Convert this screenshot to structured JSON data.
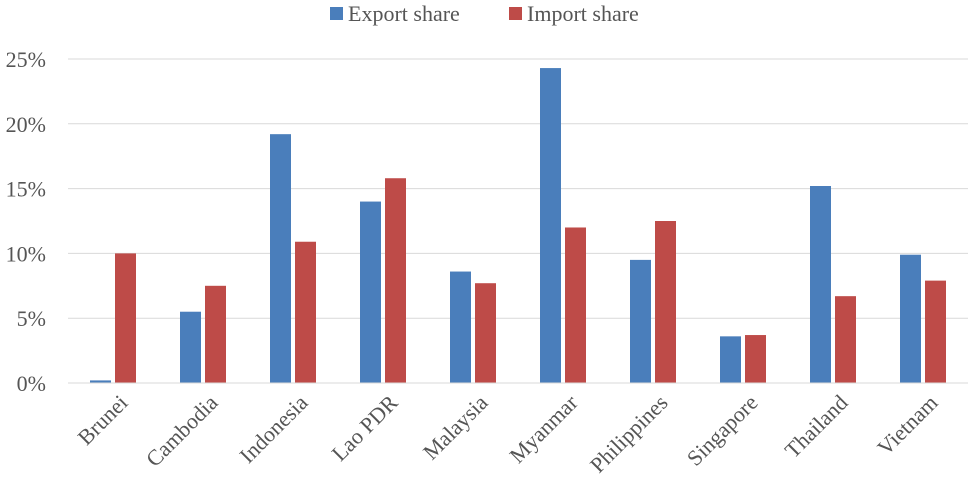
{
  "chart_data": {
    "type": "bar",
    "categories": [
      "Brunei",
      "Cambodia",
      "Indonesia",
      "Lao PDR",
      "Malaysia",
      "Myanmar",
      "Philippines",
      "Singapore",
      "Thailand",
      "Vietnam"
    ],
    "series": [
      {
        "name": "Export share",
        "color": "#4a7ebb",
        "values": [
          0.2,
          5.5,
          19.2,
          14.0,
          8.6,
          24.3,
          9.5,
          3.6,
          15.2,
          9.9
        ]
      },
      {
        "name": "Import share",
        "color": "#be4b48",
        "values": [
          10.0,
          7.5,
          10.9,
          15.8,
          7.7,
          12.0,
          12.5,
          3.7,
          6.7,
          7.9
        ]
      }
    ],
    "yticks": [
      {
        "value": 0,
        "label": "0%"
      },
      {
        "value": 5,
        "label": "5%"
      },
      {
        "value": 10,
        "label": "10%"
      },
      {
        "value": 15,
        "label": "15%"
      },
      {
        "value": 20,
        "label": "20%"
      },
      {
        "value": 25,
        "label": "25%"
      }
    ],
    "ylim": [
      0,
      25
    ],
    "grid": true,
    "legend_position": "top-center",
    "title": "",
    "xlabel": "",
    "ylabel": ""
  }
}
